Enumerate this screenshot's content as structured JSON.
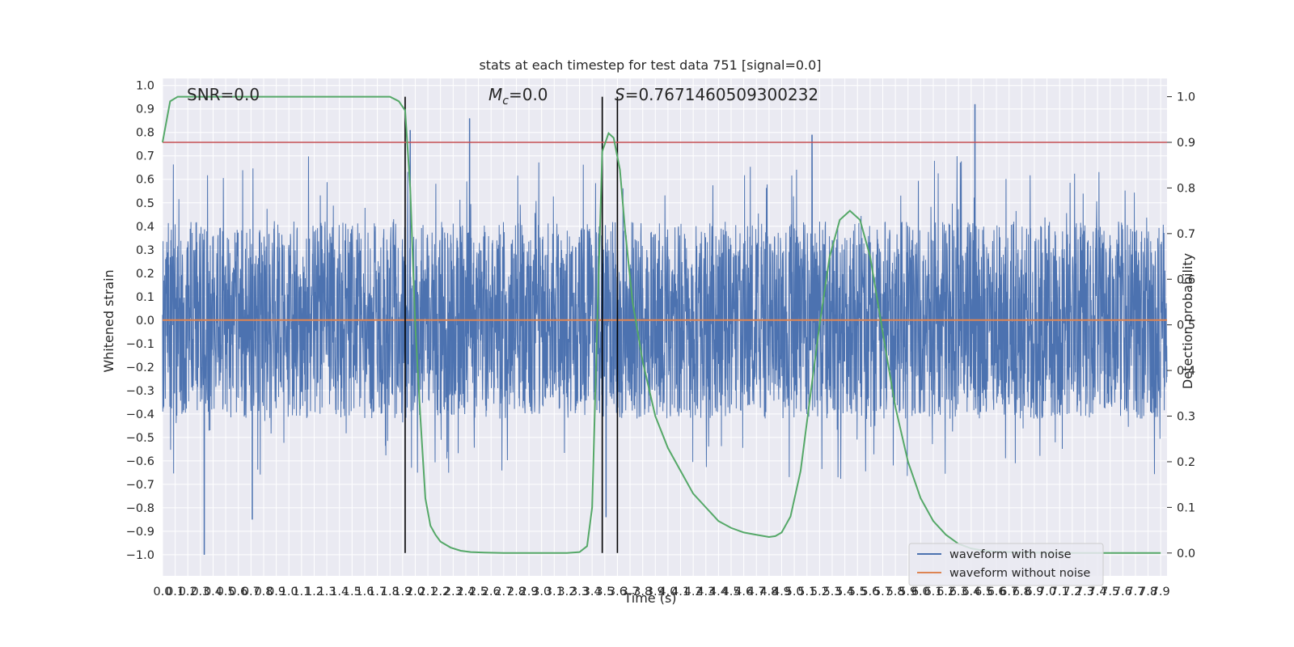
{
  "chart_data": {
    "type": "line",
    "title": "stats at each timestep for test data 751 [signal=0.0]",
    "xlabel": "Time (s)",
    "ylabel_left": "Whitened strain",
    "ylabel_right": "Detection probability",
    "xlim": [
      0.0,
      7.95
    ],
    "ylim_left": [
      -1.09,
      1.03
    ],
    "ylim_right": [
      -0.05,
      1.04
    ],
    "grid": true,
    "legend_position": "lower-right",
    "colors": {
      "noisy_waveform": "#4c72b0",
      "clean_waveform": "#dd8452",
      "detection_probability": "#55a868",
      "threshold": "#c44e52",
      "event_markers": "#000000",
      "axes_background": "#eaeaf2",
      "grid": "#ffffff"
    },
    "annotations": {
      "snr": "SNR=0.0",
      "mc_symbol": "M",
      "mc_subscript": "c",
      "mc_value": "=0.0",
      "s_symbol": "S",
      "s_value": "=0.7671460509300232"
    },
    "left_ticks": [
      "-1.0",
      "-0.9",
      "-0.8",
      "-0.7",
      "-0.6",
      "-0.5",
      "-0.4",
      "-0.3",
      "-0.2",
      "-0.1",
      "0.0",
      "0.1",
      "0.2",
      "0.3",
      "0.4",
      "0.5",
      "0.6",
      "0.7",
      "0.8",
      "0.9",
      "1.0"
    ],
    "right_ticks": [
      "0.0",
      "0.1",
      "0.2",
      "0.3",
      "0.4",
      "0.5",
      "0.6",
      "0.7",
      "0.8",
      "0.9",
      "1.0"
    ],
    "x_tick_start": 0.0,
    "x_tick_step": 0.1,
    "x_tick_count": 80,
    "threshold_probability": 0.9,
    "event_markers_time": [
      1.92,
      3.48,
      3.6
    ],
    "series": [
      {
        "name": "waveform with noise",
        "axis": "left",
        "description_points": "dense noise, envelope approx ±0.45, spikes to ±1.0",
        "envelope": {
          "typical": 0.42,
          "max_peak": 0.92,
          "min_peak": -1.0
        },
        "notable_spikes": [
          {
            "x": 0.33,
            "y": -1.0
          },
          {
            "x": 0.71,
            "y": -0.85
          },
          {
            "x": 1.96,
            "y": 0.81
          },
          {
            "x": 2.43,
            "y": 0.86
          },
          {
            "x": 3.51,
            "y": -0.84
          },
          {
            "x": 5.14,
            "y": 0.79
          },
          {
            "x": 6.43,
            "y": 0.92
          }
        ]
      },
      {
        "name": "waveform without noise",
        "axis": "left",
        "constant": 0.0
      },
      {
        "name": "",
        "axis": "right",
        "x": [
          0.0,
          0.06,
          0.12,
          0.2,
          0.4,
          0.8,
          1.2,
          1.6,
          1.8,
          1.87,
          1.92,
          1.96,
          2.0,
          2.04,
          2.08,
          2.12,
          2.16,
          2.2,
          2.28,
          2.36,
          2.44,
          2.55,
          2.7,
          3.0,
          3.2,
          3.3,
          3.36,
          3.4,
          3.44,
          3.48,
          3.53,
          3.57,
          3.62,
          3.66,
          3.72,
          3.8,
          3.9,
          4.0,
          4.1,
          4.2,
          4.3,
          4.4,
          4.5,
          4.6,
          4.7,
          4.8,
          4.85,
          4.9,
          4.97,
          5.05,
          5.12,
          5.2,
          5.28,
          5.36,
          5.44,
          5.52,
          5.6,
          5.66,
          5.72,
          5.8,
          5.9,
          6.0,
          6.1,
          6.2,
          6.3,
          6.4,
          6.5,
          6.6,
          6.7,
          6.8,
          6.9,
          7.0,
          7.2,
          7.4,
          7.6,
          7.8,
          7.9
        ],
        "y": [
          0.9,
          0.99,
          1.0,
          1.0,
          1.0,
          1.0,
          1.0,
          1.0,
          1.0,
          0.99,
          0.97,
          0.8,
          0.5,
          0.3,
          0.12,
          0.06,
          0.04,
          0.025,
          0.012,
          0.005,
          0.002,
          0.001,
          0.0,
          0.0,
          0.0,
          0.002,
          0.015,
          0.1,
          0.5,
          0.88,
          0.92,
          0.91,
          0.84,
          0.71,
          0.55,
          0.42,
          0.3,
          0.23,
          0.18,
          0.13,
          0.1,
          0.07,
          0.055,
          0.045,
          0.04,
          0.035,
          0.037,
          0.045,
          0.08,
          0.18,
          0.33,
          0.5,
          0.65,
          0.73,
          0.75,
          0.73,
          0.65,
          0.55,
          0.45,
          0.32,
          0.2,
          0.12,
          0.07,
          0.04,
          0.02,
          0.01,
          0.005,
          0.003,
          0.002,
          0.001,
          0.001,
          0.0,
          0.0,
          0.0,
          0.0,
          0.0,
          0.0
        ]
      }
    ]
  }
}
